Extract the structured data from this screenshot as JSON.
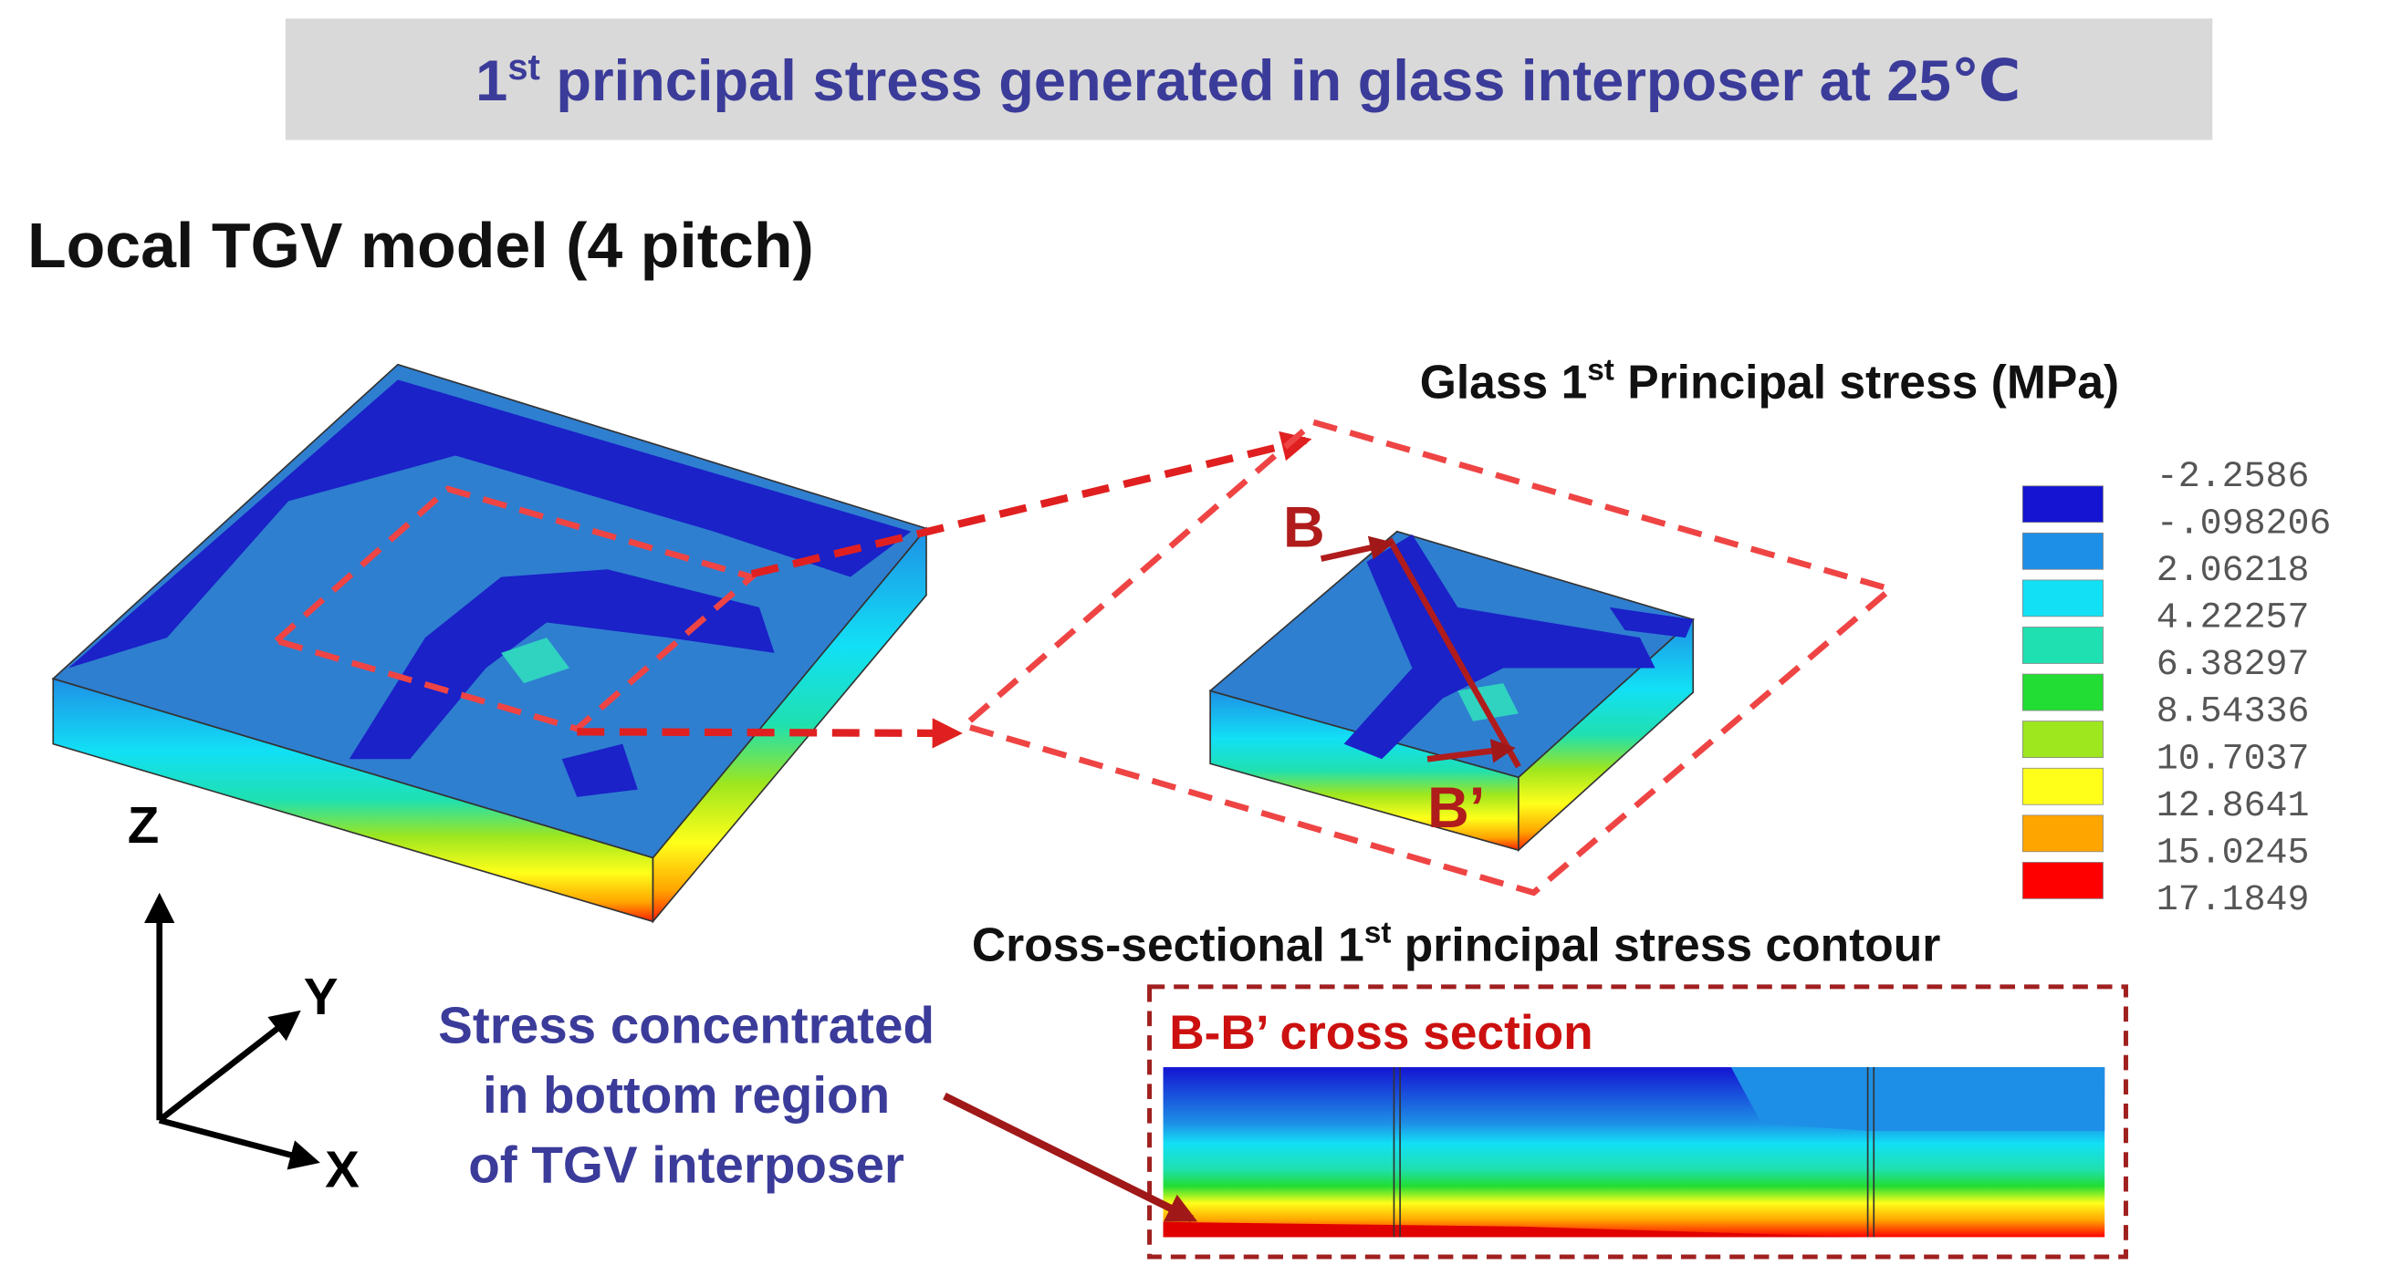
{
  "title": {
    "prefix": "1",
    "sup": "st",
    "text": " principal stress generated in glass interposer at 25℃"
  },
  "subtitle": "Local TGV model (4 pitch)",
  "legend": {
    "title": {
      "prefix": "Glass 1",
      "sup": "st",
      "text": " Principal stress (MPa)"
    },
    "entries": [
      {
        "label": "-2.2586",
        "color": "#1414d2"
      },
      {
        "label": "-.098206",
        "color": "#1e8fe6"
      },
      {
        "label": "2.06218",
        "color": "#12e0f5"
      },
      {
        "label": "4.22257",
        "color": "#1fe0b0"
      },
      {
        "label": "6.38297",
        "color": "#22dd33"
      },
      {
        "label": "8.54336",
        "color": "#9ee61e"
      },
      {
        "label": "10.7037",
        "color": "#ffff1a"
      },
      {
        "label": "12.8641",
        "color": "#ffa500"
      },
      {
        "label": "15.0245",
        "color": "#ff0000"
      },
      {
        "label": "17.1849",
        "color": "#ffffff"
      }
    ]
  },
  "axes": {
    "z": "Z",
    "y": "Y",
    "x": "X"
  },
  "section_markers": {
    "start": "B",
    "end": "B’"
  },
  "cross_section": {
    "title": {
      "prefix": "Cross-sectional 1",
      "sup": "st",
      "text": " principal stress contour"
    },
    "label": "B-B’ cross section"
  },
  "annotation": [
    "Stress concentrated",
    "in bottom region",
    "of TGV interposer"
  ]
}
